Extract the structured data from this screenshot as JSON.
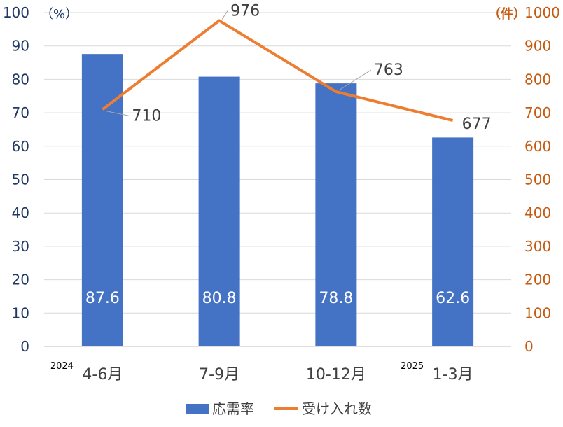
{
  "chart_data": {
    "type": "bar",
    "categories": [
      "4-6月",
      "7-9月",
      "10-12月",
      "1-3月"
    ],
    "category_year_labels": [
      "2024",
      "",
      "",
      "2025"
    ],
    "series": [
      {
        "name": "応需率",
        "type": "bar",
        "axis": "left",
        "color": "#4472c4",
        "values": [
          87.6,
          80.8,
          78.8,
          62.6
        ]
      },
      {
        "name": "受け入れ数",
        "type": "line",
        "axis": "right",
        "color": "#ed7d31",
        "values": [
          710,
          976,
          763,
          677
        ]
      }
    ],
    "left_axis": {
      "unit": "（%）",
      "min": 0,
      "max": 100,
      "step": 10,
      "color": "#1f3864"
    },
    "right_axis": {
      "unit": "（件）",
      "min": 0,
      "max": 1000,
      "step": 100,
      "color": "#c55a11"
    },
    "grid": true,
    "legend": "bottom-center"
  }
}
